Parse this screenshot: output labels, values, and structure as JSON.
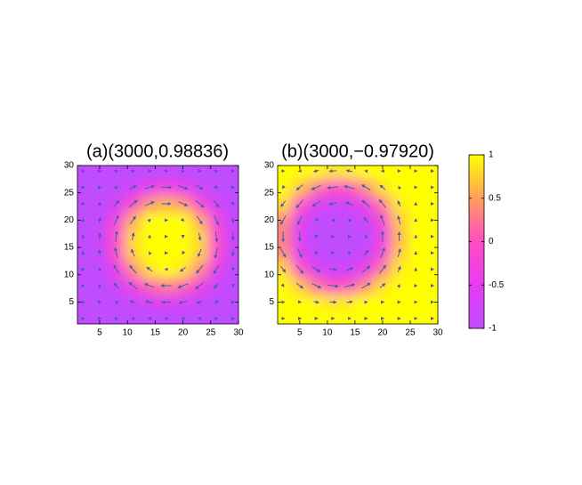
{
  "chart_data": [
    {
      "type": "heatmap",
      "title": "(a)(3000,0.98836)",
      "x": [
        2,
        5,
        8,
        11,
        14,
        17,
        20,
        23,
        26,
        29
      ],
      "y": [
        2,
        5,
        8,
        11,
        14,
        17,
        20,
        23,
        26,
        29
      ],
      "z": [
        [
          -1,
          -1,
          -1,
          -1,
          -1,
          -1,
          -1,
          -1,
          -1,
          -1
        ],
        [
          -1,
          -1,
          -1,
          -0.9,
          -0.7,
          -0.6,
          -0.7,
          -0.9,
          -1,
          -1
        ],
        [
          -1,
          -1,
          -0.85,
          -0.3,
          0.15,
          0.3,
          0.15,
          -0.3,
          -0.85,
          -1
        ],
        [
          -1,
          -1,
          -0.4,
          0.35,
          0.85,
          1,
          0.85,
          0.35,
          -0.4,
          -1
        ],
        [
          -1,
          -0.9,
          -0.05,
          0.75,
          1,
          1,
          1,
          0.75,
          -0.05,
          -0.9
        ],
        [
          -1,
          -0.85,
          0,
          0.8,
          1,
          1,
          1,
          0.8,
          0,
          -0.85
        ],
        [
          -1,
          -0.95,
          -0.25,
          0.55,
          1,
          1,
          1,
          0.55,
          -0.25,
          -0.95
        ],
        [
          -1,
          -1,
          -0.7,
          -0.05,
          0.45,
          0.6,
          0.45,
          -0.05,
          -0.7,
          -1
        ],
        [
          -1,
          -1,
          -1,
          -0.8,
          -0.4,
          -0.3,
          -0.4,
          -0.8,
          -1,
          -1
        ],
        [
          -1,
          -1,
          -1,
          -1,
          -1,
          -1,
          -1,
          -1,
          -1,
          -1
        ]
      ],
      "xlim": [
        1,
        30
      ],
      "ylim": [
        1,
        30
      ],
      "xticks": [
        5,
        10,
        15,
        20,
        25,
        30
      ],
      "yticks": [
        5,
        10,
        15,
        20,
        25,
        30
      ],
      "arrows": true
    },
    {
      "type": "heatmap",
      "title": "(b)(3000,−0.97920)",
      "x": [
        2,
        5,
        8,
        11,
        14,
        17,
        20,
        23,
        26,
        29
      ],
      "y": [
        2,
        5,
        8,
        11,
        14,
        17,
        20,
        23,
        26,
        29
      ],
      "z": [
        [
          1,
          1,
          1,
          1,
          1,
          1,
          1,
          1,
          1,
          1
        ],
        [
          1,
          1,
          0.95,
          0.85,
          0.9,
          1,
          1,
          1,
          1,
          1
        ],
        [
          1,
          0.7,
          0.25,
          0,
          0.05,
          0.4,
          0.85,
          1,
          1,
          1
        ],
        [
          0.8,
          0.05,
          -0.55,
          -0.8,
          -0.75,
          -0.35,
          0.3,
          0.9,
          1,
          1
        ],
        [
          0.4,
          -0.45,
          -1,
          -1,
          -1,
          -0.85,
          -0.15,
          0.7,
          1,
          1
        ],
        [
          0.3,
          -0.6,
          -1,
          -1,
          -1,
          -1,
          -0.3,
          0.6,
          1,
          1
        ],
        [
          0.4,
          -0.45,
          -1,
          -1,
          -1,
          -0.85,
          -0.15,
          0.7,
          1,
          1
        ],
        [
          0.8,
          0.05,
          -0.55,
          -0.8,
          -0.75,
          -0.35,
          0.3,
          0.9,
          1,
          1
        ],
        [
          1,
          0.7,
          0.25,
          0,
          0.05,
          0.4,
          0.85,
          1,
          1,
          1
        ],
        [
          1,
          1,
          0.95,
          0.85,
          0.9,
          1,
          1,
          1,
          1,
          1
        ]
      ],
      "xlim": [
        1,
        30
      ],
      "ylim": [
        1,
        30
      ],
      "xticks": [
        5,
        10,
        15,
        20,
        25,
        30
      ],
      "yticks": [
        5,
        10,
        15,
        20,
        25,
        30
      ],
      "arrows": true
    }
  ],
  "colorbar": {
    "clim": [
      -1,
      1
    ],
    "ticks": [
      -1,
      -0.5,
      0,
      0.5,
      1
    ],
    "colormap": [
      "#c04cff",
      "#e63cf2",
      "#ff4cc4",
      "#ffa05c",
      "#ffff00"
    ]
  },
  "arrow_color": "#4a58a8"
}
